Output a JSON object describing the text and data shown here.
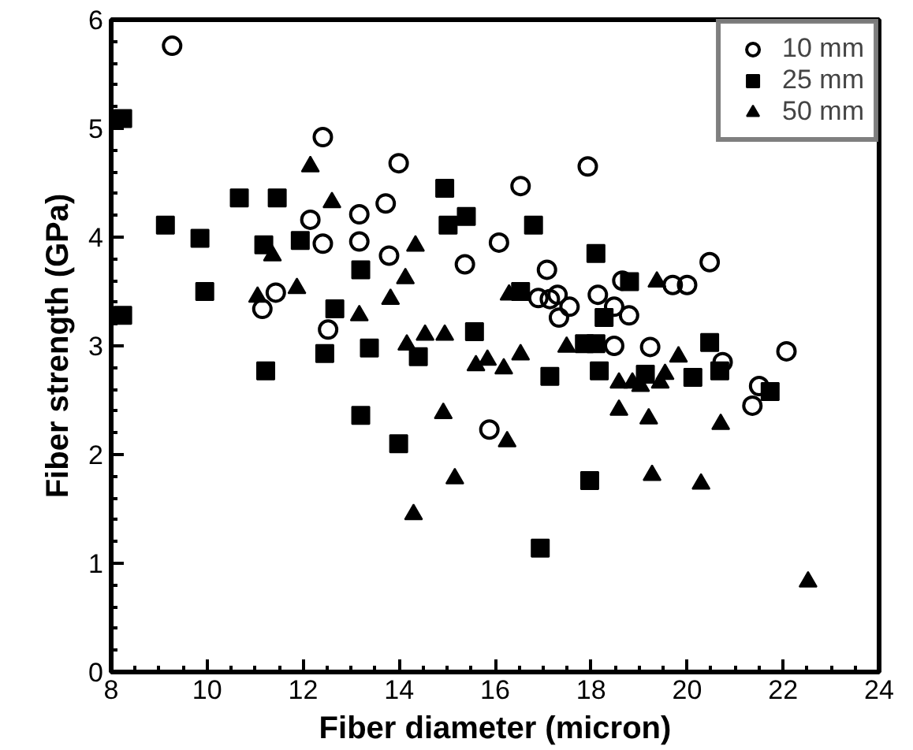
{
  "chart_data": {
    "type": "scatter",
    "xlabel": "Fiber diameter (micron)",
    "ylabel": "Fiber strength (GPa)",
    "xlim": [
      8,
      24
    ],
    "ylim": [
      0,
      6
    ],
    "xticks": [
      8,
      10,
      12,
      14,
      16,
      18,
      20,
      22,
      24
    ],
    "yticks": [
      0,
      1,
      2,
      3,
      4,
      5,
      6
    ],
    "legend": "top right",
    "series": [
      {
        "name": "10 mm",
        "color": "#000000",
        "marker": "circle",
        "x": [
          9.27,
          12.41,
          13.17,
          12.15,
          12.41,
          13.17,
          11.43,
          11.15,
          12.52,
          13.99,
          17.93,
          16.53,
          13.72,
          16.08,
          13.79,
          15.37,
          17.08,
          18.65,
          16.9,
          17.14,
          17.3,
          17.55,
          17.33,
          18.14,
          18.48,
          18.79,
          20.47,
          19.7,
          20.0,
          18.48,
          15.88,
          19.23,
          20.74,
          22.07,
          21.5,
          21.36
        ],
        "values": [
          5.76,
          4.92,
          4.21,
          4.16,
          3.94,
          3.96,
          3.49,
          3.34,
          3.15,
          4.68,
          4.65,
          4.47,
          4.31,
          3.95,
          3.83,
          3.75,
          3.7,
          3.6,
          3.44,
          3.43,
          3.47,
          3.36,
          3.26,
          3.47,
          3.36,
          3.28,
          3.77,
          3.56,
          3.56,
          3.0,
          2.23,
          2.99,
          2.85,
          2.95,
          2.63,
          2.45
        ]
      },
      {
        "name": "25 mm",
        "color": "#000000",
        "marker": "square",
        "x": [
          8.24,
          10.67,
          11.46,
          9.13,
          9.85,
          11.18,
          11.94,
          13.2,
          9.95,
          8.24,
          12.66,
          14.95,
          15.4,
          15.02,
          16.8,
          18.1,
          16.53,
          18.27,
          18.8,
          12.45,
          13.38,
          11.22,
          13.2,
          15.57,
          14.4,
          17.14,
          17.86,
          18.1,
          18.17,
          13.99,
          17.97,
          16.94,
          20.47,
          20.68,
          20.12,
          19.13,
          21.73
        ],
        "values": [
          5.09,
          4.36,
          4.36,
          4.11,
          3.99,
          3.93,
          3.97,
          3.7,
          3.5,
          3.28,
          3.34,
          4.45,
          4.19,
          4.11,
          4.11,
          3.85,
          3.5,
          3.26,
          3.59,
          2.93,
          2.98,
          2.77,
          2.36,
          3.13,
          2.9,
          2.72,
          3.02,
          3.02,
          2.77,
          2.1,
          1.76,
          1.14,
          3.03,
          2.77,
          2.71,
          2.74,
          2.58
        ]
      },
      {
        "name": "50 mm",
        "color": "#000000",
        "marker": "triangle",
        "x": [
          12.15,
          12.6,
          11.36,
          11.05,
          11.87,
          13.17,
          14.34,
          14.13,
          16.29,
          13.82,
          19.37,
          14.16,
          14.54,
          14.95,
          15.6,
          15.84,
          16.18,
          16.53,
          17.49,
          18.58,
          18.86,
          18.58,
          14.92,
          16.25,
          15.16,
          14.3,
          19.82,
          19.03,
          19.44,
          19.54,
          19.2,
          20.7,
          19.27,
          20.29,
          22.52
        ],
        "values": [
          4.65,
          4.32,
          3.83,
          3.45,
          3.53,
          3.28,
          3.92,
          3.62,
          3.47,
          3.43,
          3.59,
          3.01,
          3.1,
          3.1,
          2.82,
          2.87,
          2.79,
          2.92,
          2.99,
          2.66,
          2.66,
          2.41,
          2.38,
          2.12,
          1.78,
          1.45,
          2.9,
          2.63,
          2.66,
          2.74,
          2.33,
          2.28,
          1.81,
          1.73,
          0.83
        ]
      }
    ]
  }
}
